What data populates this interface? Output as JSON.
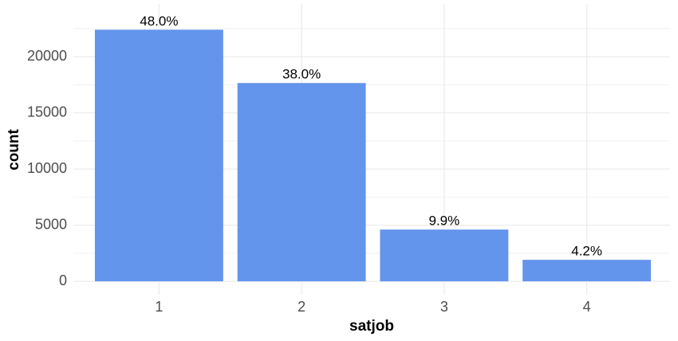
{
  "chart_data": {
    "type": "bar",
    "categories": [
      "1",
      "2",
      "3",
      "4"
    ],
    "values": [
      22410,
      17660,
      4610,
      1915
    ],
    "annotations": [
      "48.0%",
      "38.0%",
      "9.9%",
      "4.2%"
    ],
    "color": "#6495ed",
    "x_label": "satjob",
    "y_label": "count",
    "ylim": [
      -1200,
      24700
    ],
    "yticks": [
      0,
      5000,
      10000,
      15000,
      20000
    ],
    "minor_yticks": [
      2500,
      7500,
      12500,
      17500,
      22500
    ],
    "grid": true
  }
}
